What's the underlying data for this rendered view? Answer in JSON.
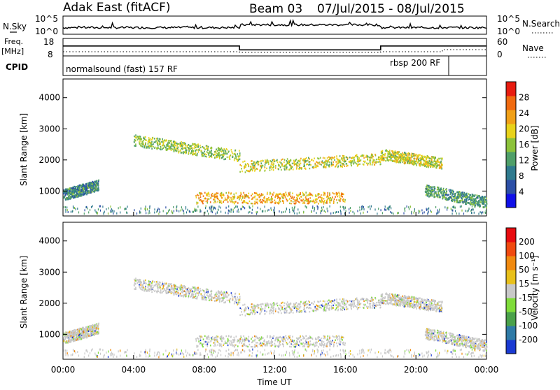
{
  "header": {
    "radar": "Adak East (fitACF)",
    "beam": "Beam 03",
    "date_range": "07/Jul/2015 - 08/Jul/2015"
  },
  "labels": {
    "nsky": "N.Sky",
    "nsearch": "N.Search",
    "freq": "Freq.",
    "freq_unit": "[MHz]",
    "nave": "Nave",
    "cpid": "CPID",
    "slant_range": "Slant Range [km]",
    "power": "Power [dB]",
    "velocity": "Velocity [m s⁻¹]",
    "time": "Time UT"
  },
  "ticks": {
    "noise_top": "10^5",
    "noise_bottom": "10^0",
    "freq_top": "18",
    "freq_bottom": "8",
    "nave_top": "60",
    "nave_bottom": "0"
  },
  "cpid": {
    "left": "normalsound (fast) 157 RF",
    "right": "rbsp 200 RF"
  },
  "chart_data": [
    {
      "type": "line",
      "title": "Adak East (fitACF)",
      "panel": "noise",
      "series": [
        {
          "name": "N.Sky"
        },
        {
          "name": "N.Search"
        }
      ]
    },
    {
      "type": "line",
      "panel": "frequency",
      "ylabel": "Freq. [MHz]",
      "ylim": [
        8,
        18
      ],
      "series": [
        {
          "name": "Freq.",
          "x": [
            "00:00",
            "10:00",
            "10:00",
            "18:00",
            "18:00",
            "24:00"
          ],
          "values": [
            13.7,
            13.7,
            11.5,
            11.5,
            13.7,
            13.7
          ]
        },
        {
          "name": "Nave"
        }
      ]
    },
    {
      "type": "heatmap",
      "panel": "power",
      "xlabel": "Time UT",
      "ylabel": "Slant Range [km]",
      "colorbar_label": "Power [dB]",
      "colorbar_ticks": [
        4,
        8,
        12,
        16,
        20,
        24,
        28
      ],
      "colorbar_colors": [
        "#1010e8",
        "#2c4fa6",
        "#2f7a8e",
        "#4f9f69",
        "#8cc23a",
        "#e8d21a",
        "#f0a018",
        "#f06a10",
        "#e81c10"
      ],
      "x_ticks": [
        "00:00",
        "04:00",
        "08:00",
        "12:00",
        "16:00",
        "20:00",
        "00:00"
      ],
      "y_ticks": [
        1000,
        2000,
        3000,
        4000
      ],
      "xlim": [
        0,
        24
      ],
      "ylim": [
        200,
        4600
      ],
      "bands": [
        {
          "t_start": 4.0,
          "t_end": 10.0,
          "r_start": 2650,
          "r_end": 2150,
          "level": 14
        },
        {
          "t_start": 10.0,
          "t_end": 18.0,
          "r_start": 1800,
          "r_end": 2050,
          "level": 16
        },
        {
          "t_start": 18.0,
          "t_end": 21.5,
          "r_start": 2200,
          "r_end": 1900,
          "level": 16
        },
        {
          "t_start": 7.5,
          "t_end": 16.0,
          "r_start": 800,
          "r_end": 800,
          "level": 20
        },
        {
          "t_start": 0.0,
          "t_end": 2.0,
          "r_start": 900,
          "r_end": 1200,
          "level": 8
        },
        {
          "t_start": 20.5,
          "t_end": 24.0,
          "r_start": 1050,
          "r_end": 650,
          "level": 10
        }
      ]
    },
    {
      "type": "heatmap",
      "panel": "velocity",
      "xlabel": "Time UT",
      "ylabel": "Slant Range [km]",
      "colorbar_label": "Velocity [m s⁻¹]",
      "colorbar_ticks": [
        200,
        100,
        50,
        15,
        -15,
        -50,
        -100,
        -200
      ],
      "colorbar_colors": [
        "#1a3ad2",
        "#2f7aa6",
        "#4aa14a",
        "#7fdc3a",
        "#c8c8c8",
        "#e8c01a",
        "#f08a10",
        "#f04a10",
        "#e80c10"
      ],
      "x_ticks": [
        "00:00",
        "04:00",
        "08:00",
        "12:00",
        "16:00",
        "20:00",
        "00:00"
      ],
      "y_ticks": [
        1000,
        2000,
        3000,
        4000
      ],
      "xlim": [
        0,
        24
      ],
      "ylim": [
        200,
        4600
      ]
    }
  ]
}
